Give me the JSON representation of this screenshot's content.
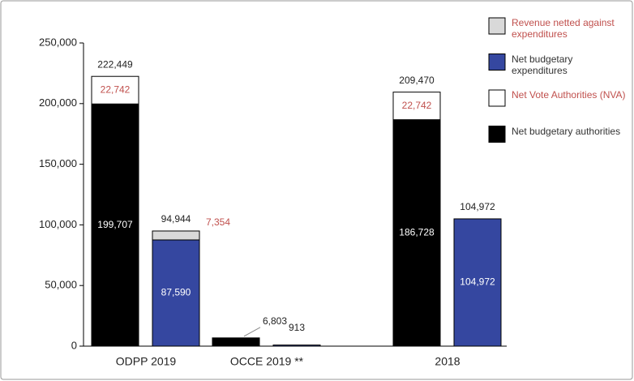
{
  "chart_data": {
    "type": "stacked-bar",
    "categories": [
      "ODPP 2019",
      "OCCE 2019 **",
      "2018"
    ],
    "series": [
      {
        "name": "Net budgetary authorities",
        "color": "#000000",
        "stack": 0,
        "values": [
          199707,
          6803,
          186728
        ],
        "value_labels": [
          "199,707",
          null,
          "186,728"
        ]
      },
      {
        "name": "Net Vote Authorities (NVA)",
        "color": "#ffffff",
        "stack": 0,
        "values": [
          22742,
          null,
          22742
        ],
        "value_labels": [
          "22,742",
          null,
          "22,742"
        ]
      },
      {
        "name": "Net budgetary expenditures",
        "color": "#3547a0",
        "stack": 1,
        "values": [
          87590,
          913,
          104972
        ],
        "value_labels": [
          "87,590",
          null,
          "104,972"
        ]
      },
      {
        "name": "Revenue netted against expenditures",
        "color": "#d9d9d9",
        "stack": 1,
        "values": [
          7354,
          null,
          null
        ],
        "value_labels": [
          "7,354",
          null,
          null
        ]
      }
    ],
    "totals": [
      [
        222449,
        6803,
        209470
      ],
      [
        94944,
        913,
        104972
      ]
    ],
    "total_labels": [
      [
        "222,449",
        "6,803",
        "209,470"
      ],
      [
        "94,944",
        "913",
        "104,972"
      ]
    ],
    "legend_order": [
      3,
      2,
      1,
      0
    ],
    "ylim": [
      0,
      250000
    ],
    "yticks": [
      0,
      {
        "value": 50000,
        "label": "50,000"
      },
      {
        "value": 100000,
        "label": "100,000"
      },
      {
        "value": 150000,
        "label": "150,000"
      },
      {
        "value": 200000,
        "label": "200,000"
      },
      {
        "value": 250000,
        "label": "250,000"
      }
    ]
  }
}
